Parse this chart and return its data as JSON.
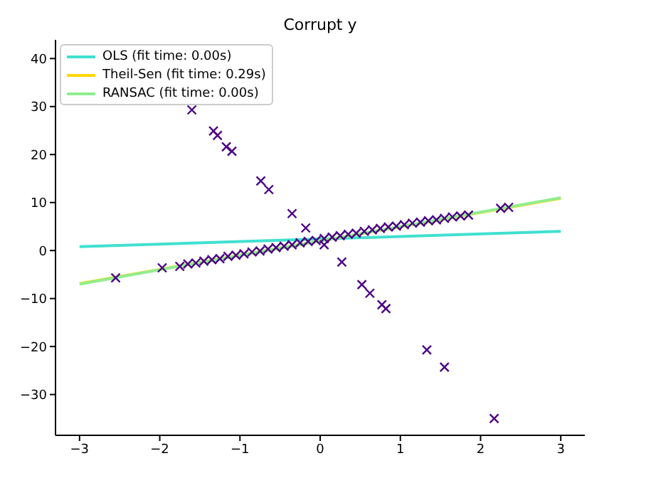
{
  "chart_data": {
    "type": "scatter",
    "title": "Corrupt y",
    "xlim": [
      -3.3,
      3.3
    ],
    "ylim": [
      -38.5,
      43.9
    ],
    "xticks": [
      -3,
      -2,
      -1,
      0,
      1,
      2,
      3
    ],
    "yticks": [
      -30,
      -20,
      -10,
      0,
      10,
      20,
      30,
      40
    ],
    "grid": false,
    "legend": "top left",
    "marker": "cross",
    "series": [
      {
        "color": "#4b0082",
        "x": [
          -1.6,
          -1.33,
          -1.28,
          -1.17,
          -1.1,
          -0.74,
          -0.64,
          -0.35,
          -0.18,
          0.05,
          0.27,
          0.52,
          0.62,
          0.77,
          0.82,
          1.33,
          1.55,
          2.17,
          -2.55,
          -1.97,
          -1.75,
          -1.65,
          -1.55,
          -1.45,
          -1.35,
          -1.25,
          -1.15,
          -1.05,
          -0.95,
          -0.85,
          -0.75,
          -0.65,
          -0.55,
          -0.45,
          -0.35,
          -0.25,
          -0.15,
          -0.05,
          0.05,
          0.15,
          0.25,
          0.35,
          0.45,
          0.55,
          0.65,
          0.75,
          0.85,
          0.95,
          1.05,
          1.15,
          1.25,
          1.35,
          1.45,
          1.55,
          1.65,
          1.75,
          1.85,
          2.25,
          2.35
        ],
        "values": [
          29.3,
          24.9,
          24,
          21.6,
          20.7,
          14.5,
          12.7,
          7.7,
          4.7,
          1.2,
          -2.4,
          -7.1,
          -8.9,
          -11.3,
          -12.1,
          -20.7,
          -24.3,
          -35,
          -5.7,
          -3.6,
          -3.3,
          -2.8,
          -2.6,
          -2.2,
          -1.9,
          -1.7,
          -1.2,
          -1,
          -0.7,
          -0.3,
          -0.1,
          0.3,
          0.6,
          0.9,
          1.2,
          1.6,
          1.9,
          2.1,
          2.5,
          2.8,
          3.1,
          3.4,
          3.6,
          4,
          4.3,
          4.6,
          4.9,
          5.1,
          5.4,
          5.7,
          5.9,
          6.2,
          6.4,
          6.7,
          7,
          7.2,
          7.4,
          8.8,
          9
        ]
      },
      {
        "type": "line",
        "name": "OLS (fit time: 0.00s)",
        "color": "#40e0d0",
        "marker": "none",
        "x": [
          -3,
          3
        ],
        "values": [
          0.8,
          4
        ]
      },
      {
        "type": "line",
        "name": "Theil-Sen (fit time: 0.29s)",
        "color": "#ffd700",
        "marker": "none",
        "x": [
          -3,
          3
        ],
        "values": [
          -6.9,
          10.9
        ]
      },
      {
        "type": "line",
        "name": "RANSAC (fit time: 0.00s)",
        "color": "#90ee90",
        "marker": "none",
        "x": [
          -3,
          3
        ],
        "values": [
          -7,
          11
        ]
      }
    ]
  }
}
